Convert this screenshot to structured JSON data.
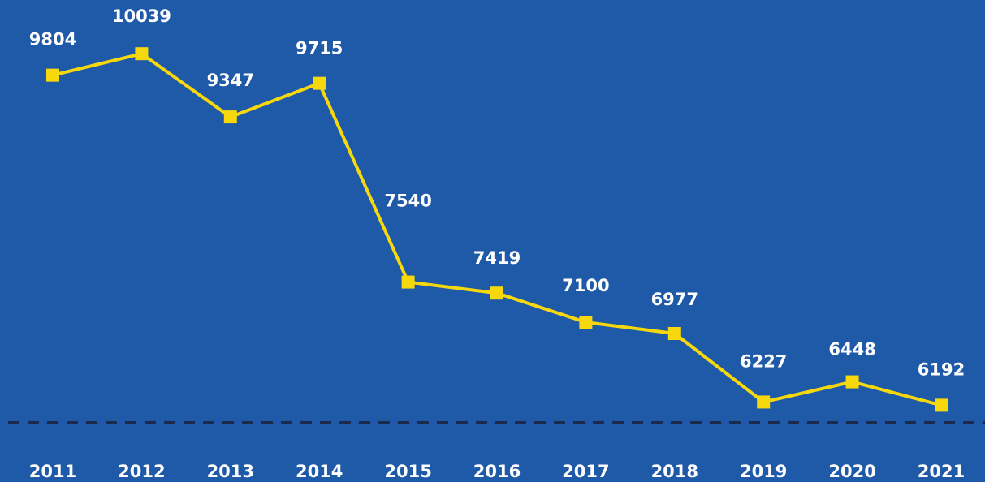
{
  "chart_data": {
    "type": "line",
    "categories": [
      "2011",
      "2012",
      "2013",
      "2014",
      "2015",
      "2016",
      "2017",
      "2018",
      "2019",
      "2020",
      "2021"
    ],
    "series": [
      {
        "color": "#f6d80c",
        "values": [
          9804,
          10039,
          9347,
          9715,
          7540,
          7419,
          7100,
          6977,
          6227,
          6448,
          6192
        ]
      }
    ],
    "ylim": [
      6000,
      10600
    ]
  }
}
